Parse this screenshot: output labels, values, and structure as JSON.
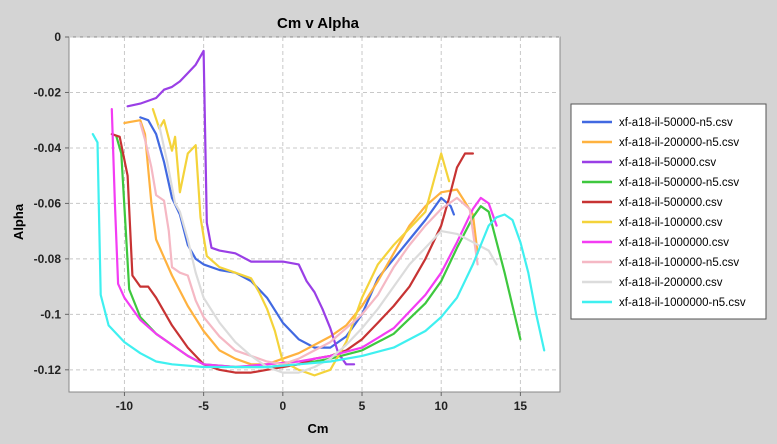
{
  "chart_data": {
    "type": "line",
    "title": "Cm v Alpha",
    "xlabel": "Cm",
    "ylabel": "Alpha",
    "xlim": [
      -13.5,
      17.5
    ],
    "ylim": [
      -0.128,
      0.0
    ],
    "xticks": [
      -10,
      -5,
      0,
      5,
      10,
      15
    ],
    "yticks": [
      0,
      -0.02,
      -0.04,
      -0.06,
      -0.08,
      -0.1,
      -0.12
    ],
    "xtick_labels": [
      "-10",
      "-5",
      "0",
      "5",
      "10",
      "15"
    ],
    "ytick_labels": [
      "0",
      "-0.02",
      "-0.04",
      "-0.06",
      "-0.08",
      "-0.1",
      "-0.12"
    ],
    "grid": true,
    "legend_position": "right",
    "series": [
      {
        "name": "xf-a18-il-50000-n5.csv",
        "color": "#4169e1",
        "points": [
          [
            -9,
            -0.029
          ],
          [
            -8.5,
            -0.03
          ],
          [
            -8,
            -0.035
          ],
          [
            -7.5,
            -0.045
          ],
          [
            -7,
            -0.058
          ],
          [
            -6.5,
            -0.064
          ],
          [
            -6,
            -0.075
          ],
          [
            -5.5,
            -0.08
          ],
          [
            -5,
            -0.082
          ],
          [
            -4,
            -0.084
          ],
          [
            -3,
            -0.085
          ],
          [
            -2,
            -0.088
          ],
          [
            -1,
            -0.094
          ],
          [
            0,
            -0.103
          ],
          [
            1,
            -0.109
          ],
          [
            2,
            -0.112
          ],
          [
            3,
            -0.112
          ],
          [
            4,
            -0.108
          ],
          [
            5,
            -0.1
          ],
          [
            6,
            -0.087
          ],
          [
            7,
            -0.08
          ],
          [
            8,
            -0.073
          ],
          [
            9,
            -0.066
          ],
          [
            10,
            -0.058
          ],
          [
            10.6,
            -0.061
          ],
          [
            10.8,
            -0.064
          ]
        ]
      },
      {
        "name": "xf-a18-il-200000-n5.csv",
        "color": "#ffb23f",
        "points": [
          [
            -10,
            -0.031
          ],
          [
            -9,
            -0.03
          ],
          [
            -8.7,
            -0.035
          ],
          [
            -8.3,
            -0.06
          ],
          [
            -8,
            -0.073
          ],
          [
            -7,
            -0.086
          ],
          [
            -6,
            -0.097
          ],
          [
            -5,
            -0.106
          ],
          [
            -4,
            -0.113
          ],
          [
            -3,
            -0.116
          ],
          [
            -2,
            -0.118
          ],
          [
            -1,
            -0.118
          ],
          [
            0,
            -0.116
          ],
          [
            1,
            -0.114
          ],
          [
            2,
            -0.111
          ],
          [
            3,
            -0.108
          ],
          [
            4,
            -0.104
          ],
          [
            5,
            -0.097
          ],
          [
            6,
            -0.088
          ],
          [
            7,
            -0.078
          ],
          [
            8,
            -0.068
          ],
          [
            9,
            -0.061
          ],
          [
            10,
            -0.056
          ],
          [
            11,
            -0.055
          ],
          [
            12,
            -0.064
          ],
          [
            12.3,
            -0.078
          ]
        ]
      },
      {
        "name": "xf-a18-il-50000.csv",
        "color": "#9a3fe6",
        "points": [
          [
            -9.8,
            -0.025
          ],
          [
            -9,
            -0.024
          ],
          [
            -8,
            -0.022
          ],
          [
            -7.5,
            -0.019
          ],
          [
            -7,
            -0.018
          ],
          [
            -6.5,
            -0.016
          ],
          [
            -6,
            -0.013
          ],
          [
            -5.5,
            -0.01
          ],
          [
            -5,
            -0.005
          ],
          [
            -4.8,
            -0.067
          ],
          [
            -4.5,
            -0.076
          ],
          [
            -4,
            -0.077
          ],
          [
            -3,
            -0.078
          ],
          [
            -2,
            -0.081
          ],
          [
            -1,
            -0.081
          ],
          [
            0,
            -0.081
          ],
          [
            1,
            -0.082
          ],
          [
            1.5,
            -0.088
          ],
          [
            2,
            -0.092
          ],
          [
            2.5,
            -0.098
          ],
          [
            3,
            -0.105
          ],
          [
            3.5,
            -0.114
          ],
          [
            4,
            -0.118
          ],
          [
            4.5,
            -0.118
          ]
        ]
      },
      {
        "name": "xf-a18-il-500000-n5.csv",
        "color": "#3ec83e",
        "points": [
          [
            -10.5,
            -0.036
          ],
          [
            -10.2,
            -0.042
          ],
          [
            -9.7,
            -0.091
          ],
          [
            -9,
            -0.101
          ],
          [
            -8,
            -0.107
          ],
          [
            -7,
            -0.111
          ],
          [
            -6,
            -0.115
          ],
          [
            -5,
            -0.118
          ],
          [
            -3,
            -0.119
          ],
          [
            -1,
            -0.119
          ],
          [
            1,
            -0.118
          ],
          [
            3,
            -0.116
          ],
          [
            5,
            -0.113
          ],
          [
            7,
            -0.107
          ],
          [
            9,
            -0.096
          ],
          [
            10,
            -0.088
          ],
          [
            11,
            -0.076
          ],
          [
            12,
            -0.065
          ],
          [
            12.5,
            -0.061
          ],
          [
            13,
            -0.063
          ],
          [
            14,
            -0.085
          ],
          [
            15,
            -0.109
          ]
        ]
      },
      {
        "name": "xf-a18-il-500000.csv",
        "color": "#c73333",
        "points": [
          [
            -10.8,
            -0.035
          ],
          [
            -10.3,
            -0.036
          ],
          [
            -9.8,
            -0.05
          ],
          [
            -9.5,
            -0.086
          ],
          [
            -9,
            -0.09
          ],
          [
            -8.5,
            -0.09
          ],
          [
            -8,
            -0.094
          ],
          [
            -7,
            -0.104
          ],
          [
            -6,
            -0.112
          ],
          [
            -5,
            -0.118
          ],
          [
            -4,
            -0.12
          ],
          [
            -3,
            -0.121
          ],
          [
            -2,
            -0.121
          ],
          [
            -1,
            -0.12
          ],
          [
            0,
            -0.119
          ],
          [
            1,
            -0.118
          ],
          [
            2,
            -0.116
          ],
          [
            3,
            -0.115
          ],
          [
            4,
            -0.113
          ],
          [
            5,
            -0.109
          ],
          [
            6,
            -0.103
          ],
          [
            7,
            -0.097
          ],
          [
            8,
            -0.09
          ],
          [
            9,
            -0.08
          ],
          [
            10,
            -0.068
          ],
          [
            10.5,
            -0.058
          ],
          [
            11,
            -0.047
          ],
          [
            11.5,
            -0.042
          ],
          [
            12,
            -0.042
          ]
        ]
      },
      {
        "name": "xf-a18-il-100000.csv",
        "color": "#f4d33a",
        "points": [
          [
            -8.2,
            -0.026
          ],
          [
            -7.8,
            -0.033
          ],
          [
            -7.5,
            -0.03
          ],
          [
            -7,
            -0.041
          ],
          [
            -6.8,
            -0.036
          ],
          [
            -6.5,
            -0.056
          ],
          [
            -6,
            -0.042
          ],
          [
            -5.5,
            -0.039
          ],
          [
            -5.2,
            -0.065
          ],
          [
            -4.8,
            -0.079
          ],
          [
            -4,
            -0.083
          ],
          [
            -3,
            -0.085
          ],
          [
            -2,
            -0.087
          ],
          [
            -1.5,
            -0.092
          ],
          [
            -1,
            -0.098
          ],
          [
            -0.5,
            -0.106
          ],
          [
            0,
            -0.117
          ],
          [
            1,
            -0.12
          ],
          [
            2,
            -0.122
          ],
          [
            3,
            -0.12
          ],
          [
            4,
            -0.11
          ],
          [
            5,
            -0.094
          ],
          [
            6,
            -0.082
          ],
          [
            7,
            -0.075
          ],
          [
            8,
            -0.069
          ],
          [
            9,
            -0.063
          ],
          [
            10,
            -0.042
          ],
          [
            10.5,
            -0.052
          ]
        ]
      },
      {
        "name": "xf-a18-il-1000000.csv",
        "color": "#f33cf3",
        "points": [
          [
            -10.8,
            -0.026
          ],
          [
            -10.6,
            -0.06
          ],
          [
            -10.4,
            -0.089
          ],
          [
            -10,
            -0.094
          ],
          [
            -9,
            -0.102
          ],
          [
            -8,
            -0.107
          ],
          [
            -7,
            -0.111
          ],
          [
            -6,
            -0.115
          ],
          [
            -5,
            -0.118
          ],
          [
            -3,
            -0.119
          ],
          [
            -1,
            -0.118
          ],
          [
            1,
            -0.117
          ],
          [
            3,
            -0.115
          ],
          [
            5,
            -0.112
          ],
          [
            7,
            -0.105
          ],
          [
            9,
            -0.093
          ],
          [
            10,
            -0.085
          ],
          [
            11,
            -0.074
          ],
          [
            12,
            -0.062
          ],
          [
            12.5,
            -0.058
          ],
          [
            13,
            -0.06
          ],
          [
            13.5,
            -0.068
          ]
        ]
      },
      {
        "name": "xf-a18-il-100000-n5.csv",
        "color": "#f5b8c4",
        "points": [
          [
            -9,
            -0.031
          ],
          [
            -8.7,
            -0.037
          ],
          [
            -8.3,
            -0.047
          ],
          [
            -8,
            -0.057
          ],
          [
            -7.5,
            -0.059
          ],
          [
            -7.2,
            -0.07
          ],
          [
            -7,
            -0.083
          ],
          [
            -6.5,
            -0.085
          ],
          [
            -6,
            -0.086
          ],
          [
            -5.5,
            -0.095
          ],
          [
            -5,
            -0.101
          ],
          [
            -4,
            -0.108
          ],
          [
            -3,
            -0.113
          ],
          [
            -2,
            -0.115
          ],
          [
            -1,
            -0.117
          ],
          [
            0,
            -0.118
          ],
          [
            1,
            -0.116
          ],
          [
            2,
            -0.113
          ],
          [
            3,
            -0.11
          ],
          [
            4,
            -0.105
          ],
          [
            5,
            -0.1
          ],
          [
            6,
            -0.093
          ],
          [
            7,
            -0.083
          ],
          [
            8,
            -0.075
          ],
          [
            9,
            -0.068
          ],
          [
            10,
            -0.062
          ],
          [
            11,
            -0.058
          ],
          [
            11.8,
            -0.062
          ],
          [
            12.3,
            -0.082
          ]
        ]
      },
      {
        "name": "xf-a18-il-200000.csv",
        "color": "#dcdcdc",
        "points": [
          [
            -7.8,
            -0.032
          ],
          [
            -7.3,
            -0.045
          ],
          [
            -6.8,
            -0.06
          ],
          [
            -6.5,
            -0.063
          ],
          [
            -6,
            -0.073
          ],
          [
            -5.5,
            -0.085
          ],
          [
            -5,
            -0.094
          ],
          [
            -4,
            -0.103
          ],
          [
            -3,
            -0.11
          ],
          [
            -2,
            -0.115
          ],
          [
            -1,
            -0.119
          ],
          [
            0,
            -0.121
          ],
          [
            1,
            -0.121
          ],
          [
            2,
            -0.119
          ],
          [
            3,
            -0.116
          ],
          [
            4,
            -0.111
          ],
          [
            5,
            -0.105
          ],
          [
            6,
            -0.098
          ],
          [
            7,
            -0.09
          ],
          [
            8,
            -0.082
          ],
          [
            9,
            -0.076
          ],
          [
            10,
            -0.07
          ],
          [
            11,
            -0.071
          ],
          [
            12,
            -0.074
          ],
          [
            13,
            -0.077
          ],
          [
            13.5,
            -0.082
          ]
        ]
      },
      {
        "name": "xf-a18-il-1000000-n5.csv",
        "color": "#3ff0f0",
        "points": [
          [
            -12,
            -0.035
          ],
          [
            -11.7,
            -0.038
          ],
          [
            -11.5,
            -0.093
          ],
          [
            -11,
            -0.104
          ],
          [
            -10,
            -0.11
          ],
          [
            -9,
            -0.114
          ],
          [
            -8,
            -0.117
          ],
          [
            -7,
            -0.118
          ],
          [
            -5,
            -0.119
          ],
          [
            -3,
            -0.119
          ],
          [
            -1,
            -0.119
          ],
          [
            1,
            -0.118
          ],
          [
            3,
            -0.117
          ],
          [
            5,
            -0.115
          ],
          [
            7,
            -0.112
          ],
          [
            9,
            -0.106
          ],
          [
            10,
            -0.101
          ],
          [
            11,
            -0.094
          ],
          [
            12,
            -0.082
          ],
          [
            12.5,
            -0.075
          ],
          [
            13,
            -0.068
          ],
          [
            13.5,
            -0.065
          ],
          [
            14,
            -0.064
          ],
          [
            14.5,
            -0.066
          ],
          [
            15,
            -0.074
          ],
          [
            15.5,
            -0.085
          ],
          [
            16,
            -0.1
          ],
          [
            16.5,
            -0.113
          ]
        ]
      }
    ]
  }
}
